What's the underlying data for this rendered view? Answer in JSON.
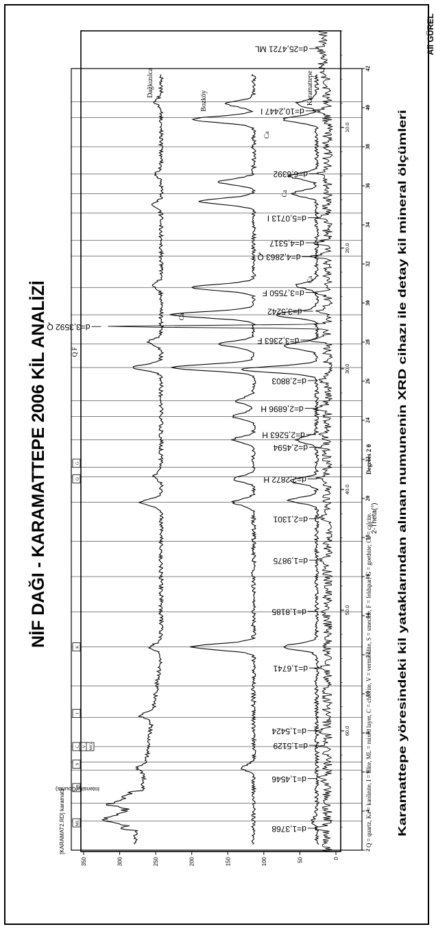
{
  "page": {
    "title": "NİF DAĞI - KARAMATTEPE 2006 KİL ANALİZİ",
    "caption": "Karamattepe yöresindeki kil yataklarından alınan numunenin XRD cihazı ile detay kil mineral ölçümleri",
    "author": "Ali GÜREL"
  },
  "chart_data": [
    {
      "type": "line",
      "xlabel": "Degrees 2 θ",
      "xlim": [
        2,
        42
      ],
      "x_ticks": [
        "2",
        "4",
        "6",
        "8",
        "10",
        "12",
        "14",
        "16",
        "18",
        "20",
        "22",
        "24",
        "26",
        "28",
        "30",
        "32",
        "34",
        "36",
        "38",
        "40",
        "42"
      ],
      "series": [
        {
          "name": "Dağkızılca"
        },
        {
          "name": "Bozköy"
        },
        {
          "name": "Karamattepe"
        }
      ],
      "mineral_boxes": [
        "ML",
        "Sm",
        "S",
        "C",
        "V",
        "MG",
        "I",
        "K",
        "Q",
        "G"
      ],
      "annotations": [
        "Q F",
        "Ca",
        "Ca",
        "Ca",
        "Ca"
      ],
      "legend_text": "Q = quartz, Ka = kaolinite, I = illite, ML = mixed layer, C = chlorite, V = vermiculite, S = smectite, F = feldspar; G = goethite; Ca = calcite."
    },
    {
      "type": "line",
      "title": "[KARAMAT2.RD] karamat2",
      "xlabel": "2-Theta(°)",
      "ylabel": "Intensity(Counts)",
      "xlim": [
        2,
        65
      ],
      "ylim": [
        0,
        350
      ],
      "x_ticks": [
        "10.0",
        "20.0",
        "30.0",
        "40.0",
        "50.0",
        "60.0"
      ],
      "y_ticks": [
        "0",
        "50",
        "100",
        "150",
        "200",
        "250",
        "300",
        "350"
      ],
      "peaks": [
        {
          "x": 3.47,
          "y": 20,
          "label": "d=25,4721",
          "mineral": "ML"
        },
        {
          "x": 8.63,
          "y": 25,
          "label": "d=10,2447",
          "mineral": "I"
        },
        {
          "x": 13.84,
          "y": 20,
          "label": "d=6,6392",
          "mineral": ""
        },
        {
          "x": 17.48,
          "y": 22,
          "label": "d=5,0713",
          "mineral": "I"
        },
        {
          "x": 19.56,
          "y": 25,
          "label": "d=4,5317",
          "mineral": ""
        },
        {
          "x": 20.71,
          "y": 30,
          "label": "d=4,2863",
          "mineral": "Q"
        },
        {
          "x": 23.68,
          "y": 25,
          "label": "d=3,7550",
          "mineral": "F"
        },
        {
          "x": 25.23,
          "y": 28,
          "label": "d=3,5242",
          "mineral": ""
        },
        {
          "x": 26.5,
          "y": 322,
          "label": "d=3,3592",
          "mineral": "Q"
        },
        {
          "x": 27.62,
          "y": 32,
          "label": "d=3,2363",
          "mineral": "F"
        },
        {
          "x": 30.98,
          "y": 22,
          "label": "d=2,8803",
          "mineral": ""
        },
        {
          "x": 33.27,
          "y": 26,
          "label": "d=2,6896",
          "mineral": "H"
        },
        {
          "x": 35.45,
          "y": 24,
          "label": "d=2,5263",
          "mineral": "H"
        },
        {
          "x": 36.5,
          "y": 20,
          "label": "d=2,4594",
          "mineral": ""
        },
        {
          "x": 39.13,
          "y": 22,
          "label": "d=2,2872",
          "mineral": "H"
        },
        {
          "x": 42.43,
          "y": 20,
          "label": "d=2,1301",
          "mineral": ""
        },
        {
          "x": 45.86,
          "y": 20,
          "label": "d=1,9875",
          "mineral": ""
        },
        {
          "x": 50.1,
          "y": 22,
          "label": "d=1,8185",
          "mineral": ""
        },
        {
          "x": 54.79,
          "y": 20,
          "label": "d=1,6741",
          "mineral": ""
        },
        {
          "x": 59.99,
          "y": 22,
          "label": "d=1,5424",
          "mineral": ""
        },
        {
          "x": 61.2,
          "y": 20,
          "label": "d=1,5129",
          "mineral": ""
        },
        {
          "x": 63.96,
          "y": 22,
          "label": "d=1,4546",
          "mineral": ""
        },
        {
          "x": 68.07,
          "y": 22,
          "label": "d=1,3768",
          "mineral": ""
        }
      ]
    }
  ]
}
